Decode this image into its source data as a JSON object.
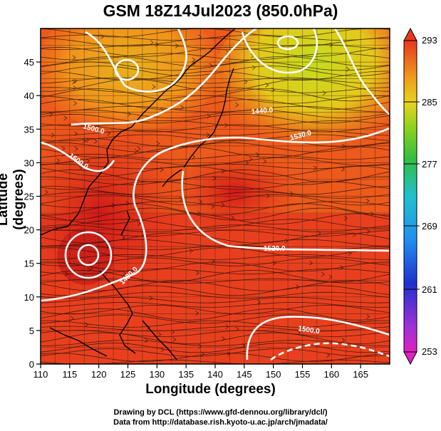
{
  "title": "GSM 18Z14Jul2023 (850.0hPa)",
  "axes": {
    "xlabel": "Longitude (degrees)",
    "ylabel": "Latitude  (degrees)",
    "xticks": [
      110,
      115,
      120,
      125,
      130,
      135,
      140,
      145,
      150,
      155,
      160,
      165
    ],
    "yticks": [
      0,
      5,
      10,
      15,
      20,
      25,
      30,
      35,
      40,
      45
    ],
    "xlim": [
      110,
      170
    ],
    "ylim": [
      0,
      50
    ]
  },
  "colorbar": {
    "labels": [
      "293",
      "285",
      "277",
      "269",
      "261",
      "253"
    ],
    "range": [
      253,
      293
    ]
  },
  "contour_labels": [
    "1500.0",
    "1500.0",
    "1440.0",
    "1530.0",
    "1530.0",
    "1520.0",
    "1500.0",
    "1480.0"
  ],
  "credits": {
    "line1": "Drawing by DCL (https://www.gfd-dennou.org/library/dcl/)",
    "line2": "Data from http://database.rish.kyoto-u.ac.jp/arch/jmadata/"
  },
  "colors": {
    "warm": "#e8381e",
    "hot": "#d41c1c",
    "mid": "#f07b1a",
    "cool": "#c9d21a",
    "cold": "#9fd82a"
  }
}
